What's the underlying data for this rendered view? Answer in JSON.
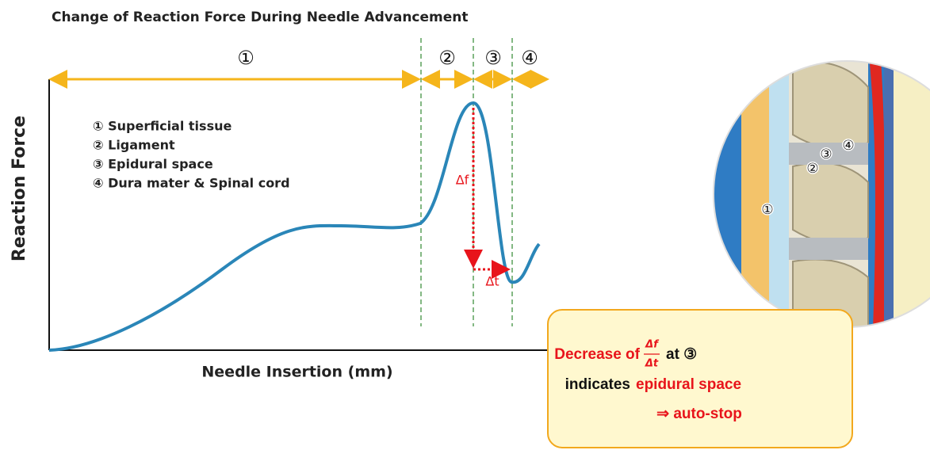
{
  "title": "Change of Reaction Force During Needle Advancement",
  "y_axis_label": "Reaction Force",
  "x_axis_label": "Needle Insertion  (mm)",
  "regions": [
    "①",
    "②",
    "③",
    "④"
  ],
  "legend": [
    "① Superficial tissue",
    "② Ligament",
    "③ Epidural space",
    "④ Dura mater  & Spinal cord"
  ],
  "annotations": {
    "delta_f": "Δf",
    "delta_t": "Δt"
  },
  "callout": {
    "line1": {
      "text": "Decrease of",
      "fraction_num": "Δf",
      "fraction_den": "Δt",
      "suffix": "at ③"
    },
    "line2": {
      "text": "indicates",
      "highlight": "epidural space"
    },
    "line3": "⇒  auto-stop"
  },
  "image_labels": [
    "①",
    "②",
    "③",
    "④"
  ]
}
